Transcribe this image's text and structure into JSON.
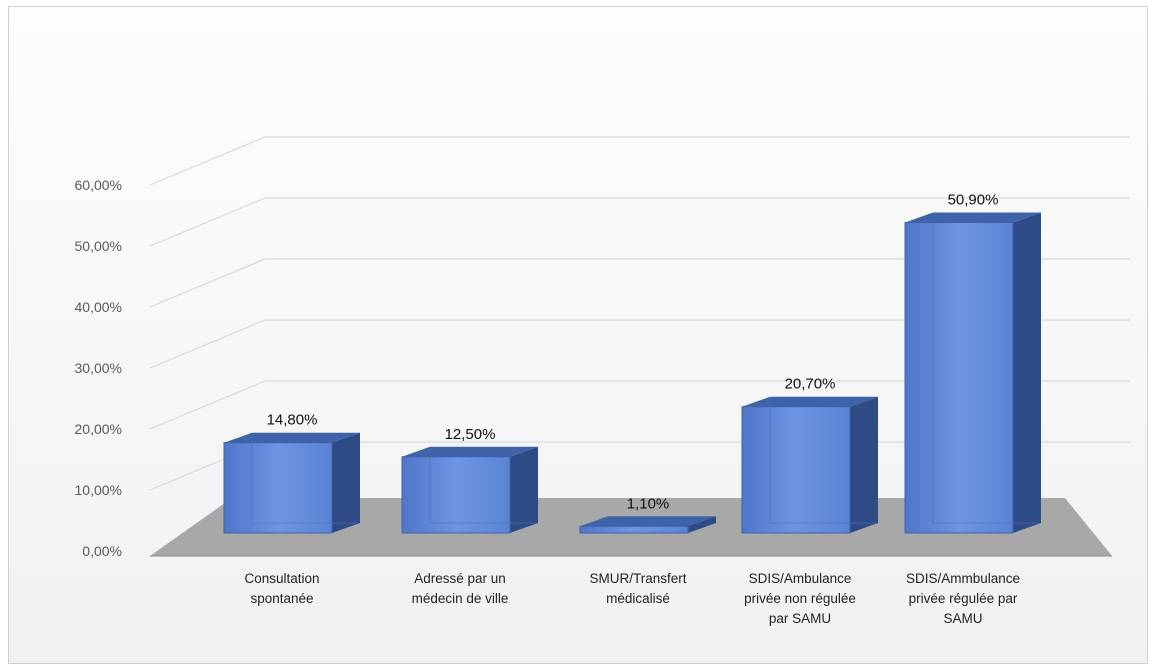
{
  "chart_data": {
    "type": "bar",
    "categories": [
      [
        "Consultation",
        "spontanée"
      ],
      [
        "Adressé par un",
        "médecin de ville"
      ],
      [
        "SMUR/Transfert",
        "médicalisé"
      ],
      [
        "SDIS/Ambulance",
        "privée non régulée",
        "par SAMU"
      ],
      [
        "SDIS/Ammbulance",
        "privée régulée par",
        "SAMU"
      ]
    ],
    "values": [
      14.8,
      12.5,
      1.1,
      20.7,
      50.9
    ],
    "data_labels": [
      "14,80%",
      "12,50%",
      "1,10%",
      "20,70%",
      "50,90%"
    ],
    "yticks": [
      "0,00%",
      "10,00%",
      "20,00%",
      "30,00%",
      "40,00%",
      "50,00%",
      "60,00%"
    ],
    "ylim": [
      0,
      60
    ],
    "grid": true,
    "style": "3d-column",
    "colors": {
      "bar_front": "#5b84d6",
      "bar_front_light": "#6d95e3",
      "bar_side": "#2e4b86",
      "bar_top": "#3f63a8",
      "floor": "#a8a8a8",
      "grid": "#d9d9d9"
    }
  }
}
